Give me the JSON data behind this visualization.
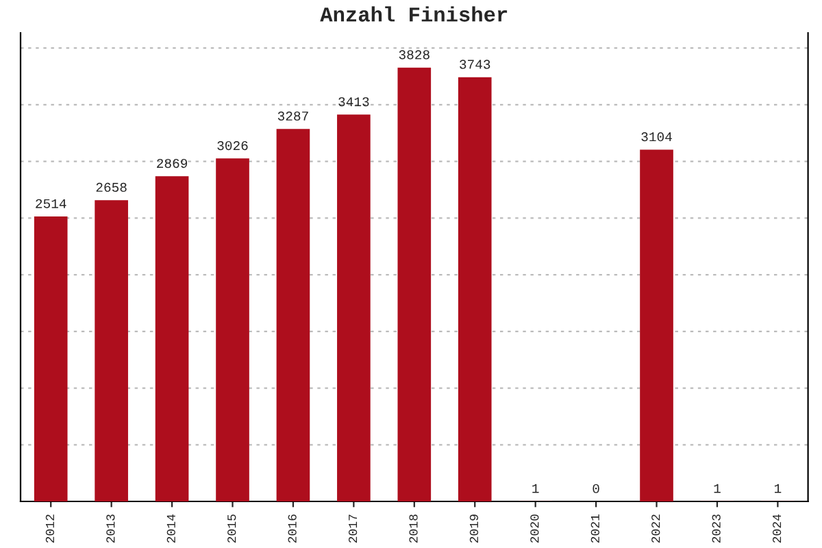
{
  "chart_data": {
    "type": "bar",
    "title": "Anzahl Finisher",
    "categories": [
      "2012",
      "2013",
      "2014",
      "2015",
      "2016",
      "2017",
      "2018",
      "2019",
      "2020",
      "2021",
      "2022",
      "2023",
      "2024"
    ],
    "values": [
      2514,
      2658,
      2869,
      3026,
      3287,
      3413,
      3828,
      3743,
      1,
      0,
      3104,
      1,
      1
    ],
    "color": "#ae0e1d",
    "data_labels": true,
    "grid": "y",
    "tick_labels": "x"
  }
}
